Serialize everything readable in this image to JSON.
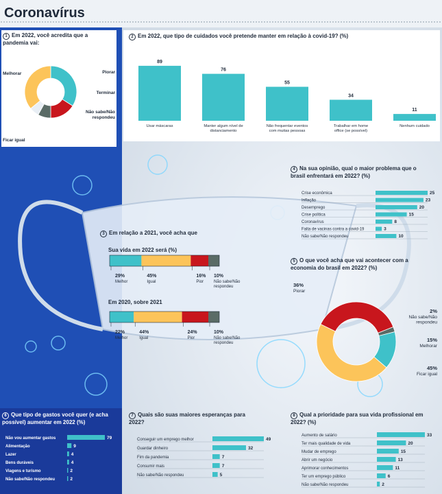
{
  "page": {
    "title": "Coronavírus"
  },
  "colors": {
    "teal": "#3fc1c9",
    "yellow": "#fcc45a",
    "red": "#c8161d",
    "gray": "#5a6b66",
    "navy": "#1f2a3a",
    "blue": "#1f4fb5"
  },
  "q1": {
    "number": "1",
    "title": "Em 2022, você acredita que a pandemia vai:",
    "chart_data": {
      "type": "pie",
      "labels": [
        "Melhorar",
        "Piorar",
        "Terminar",
        "Não sabe/Não respondeu",
        "Ficar igual"
      ],
      "values": [
        34,
        16,
        8,
        6,
        36
      ],
      "colors": [
        "#3fc1c9",
        "#c8161d",
        "#5a6b66",
        "#e8eef4",
        "#fcc45a"
      ]
    }
  },
  "q2": {
    "number": "2",
    "title": "Em 2022, que tipo de cuidados você pretende manter em relação à covid-19? (%)",
    "chart_data": {
      "type": "bar",
      "categories": [
        "Usar máscaras",
        "Manter algum nível de distanciamento",
        "Não frequentar eventos com muitas pessoas",
        "Trabalhar em home office (se possível)",
        "Nenhum cuidado"
      ],
      "values": [
        89,
        76,
        55,
        34,
        11
      ],
      "ylim": [
        0,
        100
      ]
    }
  },
  "q3": {
    "number": "3",
    "title": "Em relação a 2021, você acha que",
    "sub1": "Sua vida em 2022 será (%)",
    "sub2": "Em 2020, sobre 2021",
    "chart_data": [
      {
        "type": "bar",
        "stacked": true,
        "categories": [
          "Melhor",
          "Igual",
          "Pior",
          "Não sabe/Não respondeu"
        ],
        "values": [
          29,
          45,
          16,
          10
        ],
        "labels": [
          "29%",
          "45%",
          "16%",
          "10%"
        ]
      },
      {
        "type": "bar",
        "stacked": true,
        "categories": [
          "Melhor",
          "Igual",
          "Pior",
          "Não sabe/Não respondeu"
        ],
        "values": [
          22,
          44,
          24,
          10
        ],
        "labels": [
          "22%",
          "44%",
          "24%",
          "10%"
        ]
      }
    ]
  },
  "q4": {
    "number": "4",
    "title": "Na sua opinião, qual o maior problema que o brasil enfrentará em 2022? (%)",
    "chart_data": {
      "type": "bar",
      "orientation": "horizontal",
      "categories": [
        "Crise econômica",
        "Inflação",
        "Desemprego",
        "Crise política",
        "Coronavírus",
        "Falta de vacinas contra a covid-19",
        "Não sabe/Não respondeu"
      ],
      "values": [
        25,
        23,
        20,
        15,
        8,
        3,
        10
      ]
    }
  },
  "q5": {
    "number": "5",
    "title": "O que você acha que vai acontecer com a economia do brasil em 2022? (%)",
    "chart_data": {
      "type": "pie",
      "labels": [
        "Piorar",
        "Não sabe/Não respondeu",
        "Melhorar",
        "Ficar igual"
      ],
      "values": [
        36,
        2,
        15,
        45
      ],
      "value_labels": [
        "36%",
        "2%",
        "15%",
        "45%"
      ],
      "colors": [
        "#c8161d",
        "#5a6b66",
        "#3fc1c9",
        "#fcc45a"
      ]
    }
  },
  "q6": {
    "number": "6",
    "title": "Que tipo de gastos você quer (e acha possível) aumentar em 2022 (%)",
    "chart_data": {
      "type": "bar",
      "orientation": "horizontal",
      "categories": [
        "Não vou aumentar gastos",
        "Alimentação",
        "Lazer",
        "Bens duráveis",
        "Viagens e turismo",
        "Não sabe/Não respondeu"
      ],
      "values": [
        79,
        9,
        4,
        4,
        2,
        2
      ]
    }
  },
  "q7": {
    "number": "7",
    "title": "Quais são suas maiores esperanças para 2022?",
    "chart_data": {
      "type": "bar",
      "orientation": "horizontal",
      "categories": [
        "Conseguir um emprego melhor",
        "Guardar dinheiro",
        "Fim da pandemia",
        "Consumir mais",
        "Não sabe/Não respondeu"
      ],
      "values": [
        49,
        32,
        7,
        7,
        5
      ]
    }
  },
  "q8": {
    "number": "8",
    "title": "Qual a prioridade para sua vida profissional em 2022? (%)",
    "chart_data": {
      "type": "bar",
      "orientation": "horizontal",
      "categories": [
        "Aumento de salário",
        "Ter mais qualidade de vida",
        "Mudar de emprego",
        "Abrir um negócio",
        "Aprimorar conhecimentos",
        "Ter um emprego público",
        "Não sabe/Não respondeu"
      ],
      "values": [
        33,
        20,
        15,
        13,
        11,
        6,
        2
      ]
    }
  }
}
